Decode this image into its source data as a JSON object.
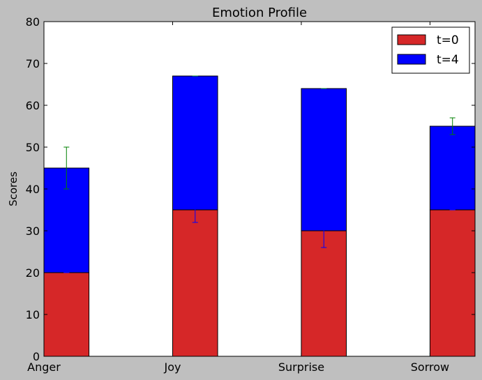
{
  "chart_data": {
    "type": "bar",
    "stacked": true,
    "title": "Emotion Profile",
    "xlabel": "",
    "ylabel": "Scores",
    "categories": [
      "Anger",
      "Joy",
      "Surprise",
      "Sorrow"
    ],
    "ylim": [
      0,
      80
    ],
    "yticks": [
      0,
      10,
      20,
      30,
      40,
      50,
      60,
      70,
      80
    ],
    "grid": false,
    "legend_position": "top-right",
    "series": [
      {
        "name": "t=0",
        "values": [
          20,
          35,
          30,
          35
        ],
        "color": "#d62728",
        "errors": [
          0,
          3,
          4,
          0
        ],
        "error_color": "#0000ff"
      },
      {
        "name": "t=4",
        "values": [
          25,
          32,
          34,
          20
        ],
        "color": "#0000ff",
        "errors": [
          5,
          0,
          0,
          2
        ],
        "error_color": "#008000"
      }
    ]
  }
}
